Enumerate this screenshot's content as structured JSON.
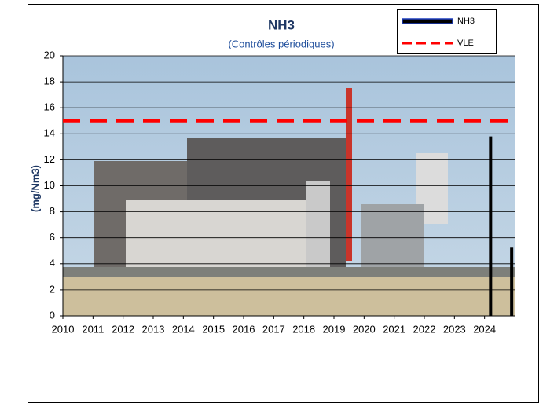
{
  "chart_data": {
    "type": "bar",
    "title": "NH3",
    "subtitle": "(Contrôles périodiques)",
    "y_label": "(mg/Nm3)",
    "xlim": [
      2010,
      2025
    ],
    "xticks": [
      2010,
      2011,
      2012,
      2013,
      2014,
      2015,
      2016,
      2017,
      2018,
      2019,
      2020,
      2021,
      2022,
      2023,
      2024
    ],
    "ylim": [
      0,
      20
    ],
    "yticks": [
      0,
      2,
      4,
      6,
      8,
      10,
      12,
      14,
      16,
      18,
      20
    ],
    "grid": true,
    "legend": "top-right",
    "series": [
      {
        "name": "NH3",
        "type": "bar",
        "color": "#000000",
        "x": [
          2024.2,
          2024.9
        ],
        "values": [
          13.8,
          5.3
        ]
      },
      {
        "name": "VLE",
        "type": "line",
        "style": "dashed",
        "color": "#ff0000",
        "x": [
          2010,
          2025
        ],
        "values": [
          15,
          15
        ]
      }
    ]
  }
}
